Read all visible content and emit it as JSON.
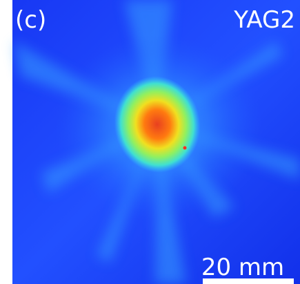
{
  "panel_label": "(c)",
  "screen_label": "YAG2",
  "scale_bar_label": "20 mm"
}
